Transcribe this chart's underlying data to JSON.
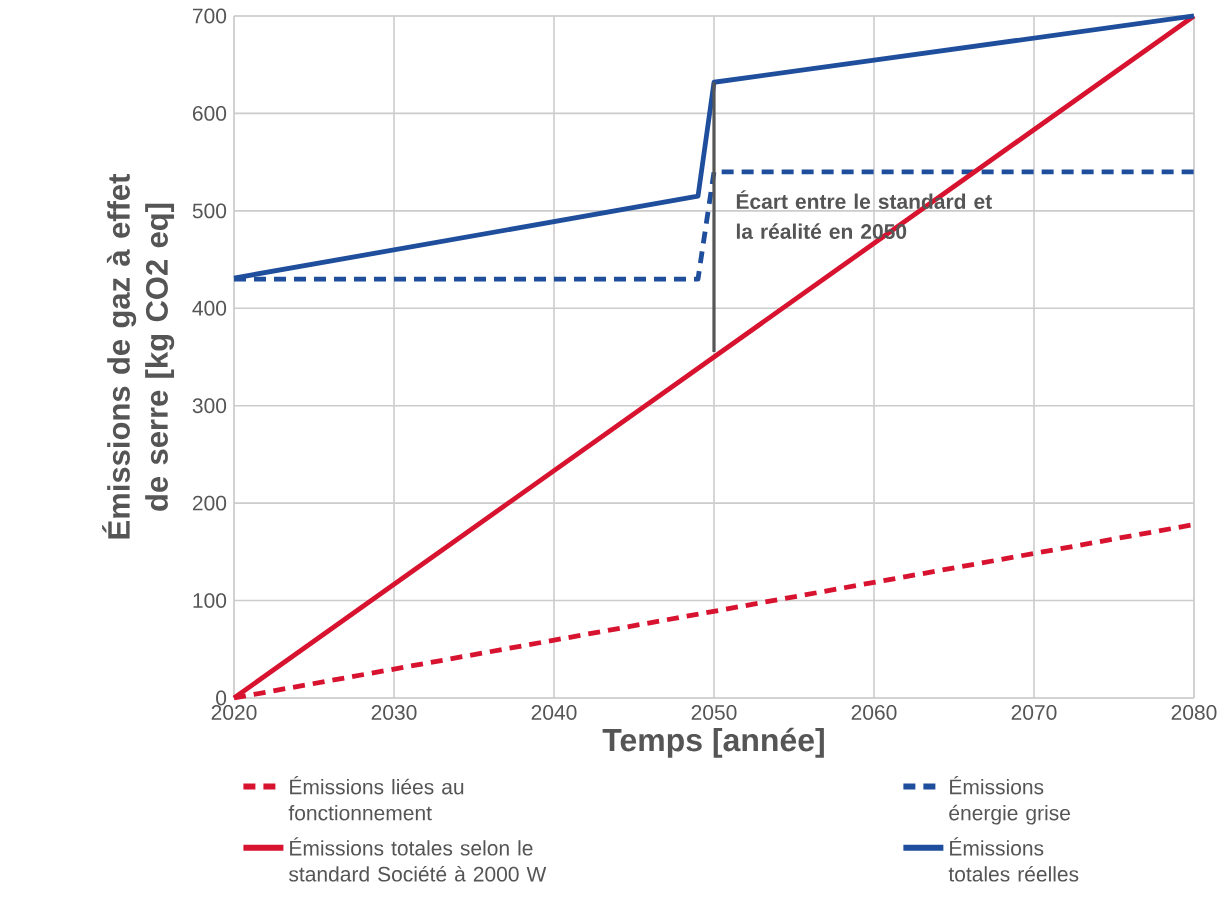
{
  "chart_data": {
    "type": "line",
    "xlabel": "Temps [année]",
    "ylabel": "Émissions de gaz à effet de serre [kg CO2 eq]",
    "xlim": [
      2020,
      2080
    ],
    "xticks": [
      2020,
      2030,
      2040,
      2050,
      2060,
      2070,
      2080
    ],
    "ylim": [
      0,
      700
    ],
    "yticks": [
      0,
      100,
      200,
      300,
      400,
      500,
      600,
      700
    ],
    "grid": true,
    "legend": "bottom",
    "marker": "none",
    "series": [
      {
        "name": "Émissions liées au fonctionnement",
        "color": "#d7132f",
        "line_style": "dashed",
        "x": [
          2020,
          2080
        ],
        "values": [
          0,
          178
        ]
      },
      {
        "name": "Émissions énergie grise",
        "color": "#1f4e9c",
        "line_style": "dashed",
        "x": [
          2020,
          2049,
          2050,
          2080
        ],
        "values": [
          430,
          430,
          540,
          540
        ]
      },
      {
        "name": "Émissions totales selon le standard Société à 2000 W",
        "color": "#d7132f",
        "line_style": "solid",
        "x": [
          2020,
          2050,
          2080
        ],
        "values": [
          0,
          350,
          700
        ]
      },
      {
        "name": "Émissions totales réelles",
        "color": "#1f4e9c",
        "line_style": "solid",
        "x": [
          2020,
          2049,
          2050,
          2080
        ],
        "values": [
          431,
          515,
          632,
          700
        ]
      },
      {
        "type": "line",
        "color": "#555555",
        "line_style": "solid",
        "x": [
          2050,
          2050
        ],
        "values": [
          355,
          632
        ]
      }
    ],
    "annotations": [
      "Écart entre le standard et la réalité en 2050"
    ]
  }
}
